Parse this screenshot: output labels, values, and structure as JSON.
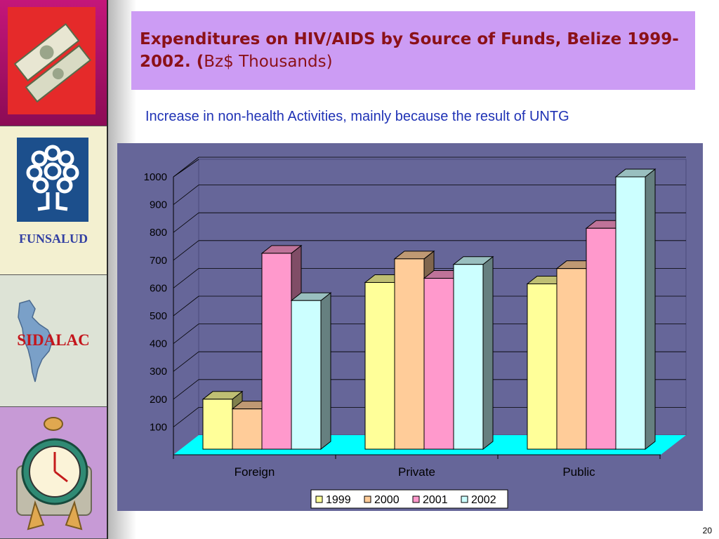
{
  "slide": {
    "title_main": "Expenditures on HIV/AIDS by Source of Funds, Belize 1999-2002. (",
    "title_unit": "Bz$ Thousands)",
    "subtitle": "Increase in non-health Activities, mainly because the result of UNTG",
    "page_number": "20"
  },
  "sidebar": {
    "funsalud_label": "FUNSALUD",
    "sidalac_label": "SIDALAC"
  },
  "colors": {
    "chart_bg": "#666699",
    "floor": "#00ffff",
    "series": [
      "#ffff99",
      "#ffcc99",
      "#ff99cc",
      "#ccffff"
    ]
  },
  "chart_data": {
    "type": "bar",
    "style": "3d-clustered",
    "categories": [
      "Foreign",
      "Private",
      "Public"
    ],
    "series": [
      {
        "name": "1999",
        "values": [
          200,
          620,
          615
        ]
      },
      {
        "name": "2000",
        "values": [
          165,
          705,
          670
        ]
      },
      {
        "name": "2001",
        "values": [
          725,
          635,
          815
        ]
      },
      {
        "name": "2002",
        "values": [
          555,
          685,
          1000
        ]
      }
    ],
    "yticks": [
      100,
      200,
      300,
      400,
      500,
      600,
      700,
      800,
      900,
      1000
    ],
    "ylim": [
      0,
      1000
    ],
    "grid": true,
    "legend_position": "bottom"
  }
}
